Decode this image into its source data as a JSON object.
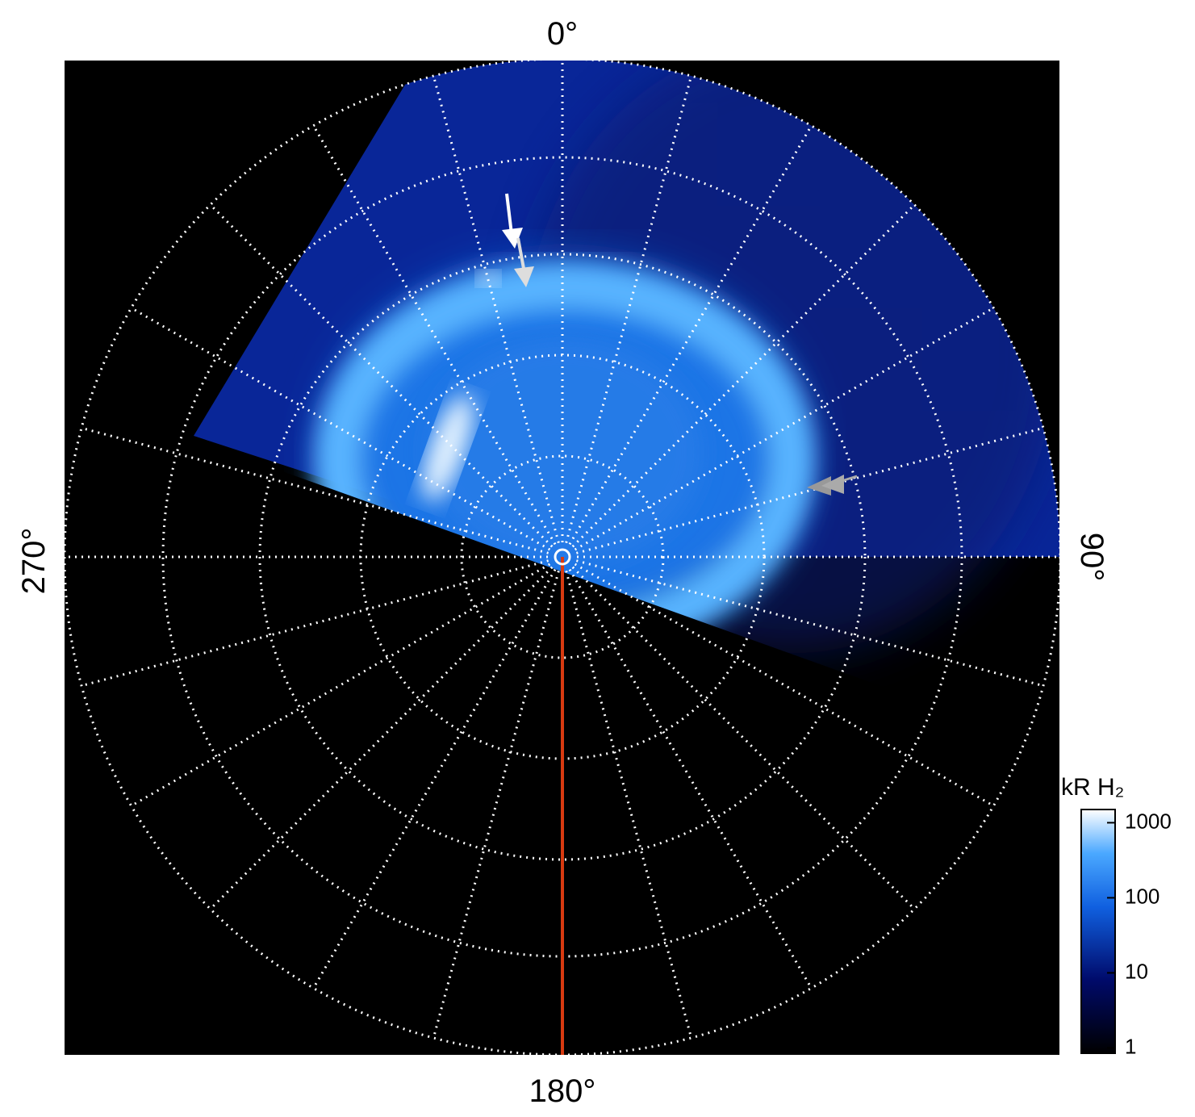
{
  "labels": {
    "top": "0°",
    "right": "90°",
    "bottom": "180°",
    "left": "270°"
  },
  "colorbar": {
    "title": "kR H₂",
    "lim": [
      0.85,
      1500
    ],
    "ticks": [
      1,
      10,
      100,
      1000
    ],
    "log": true
  }
}
